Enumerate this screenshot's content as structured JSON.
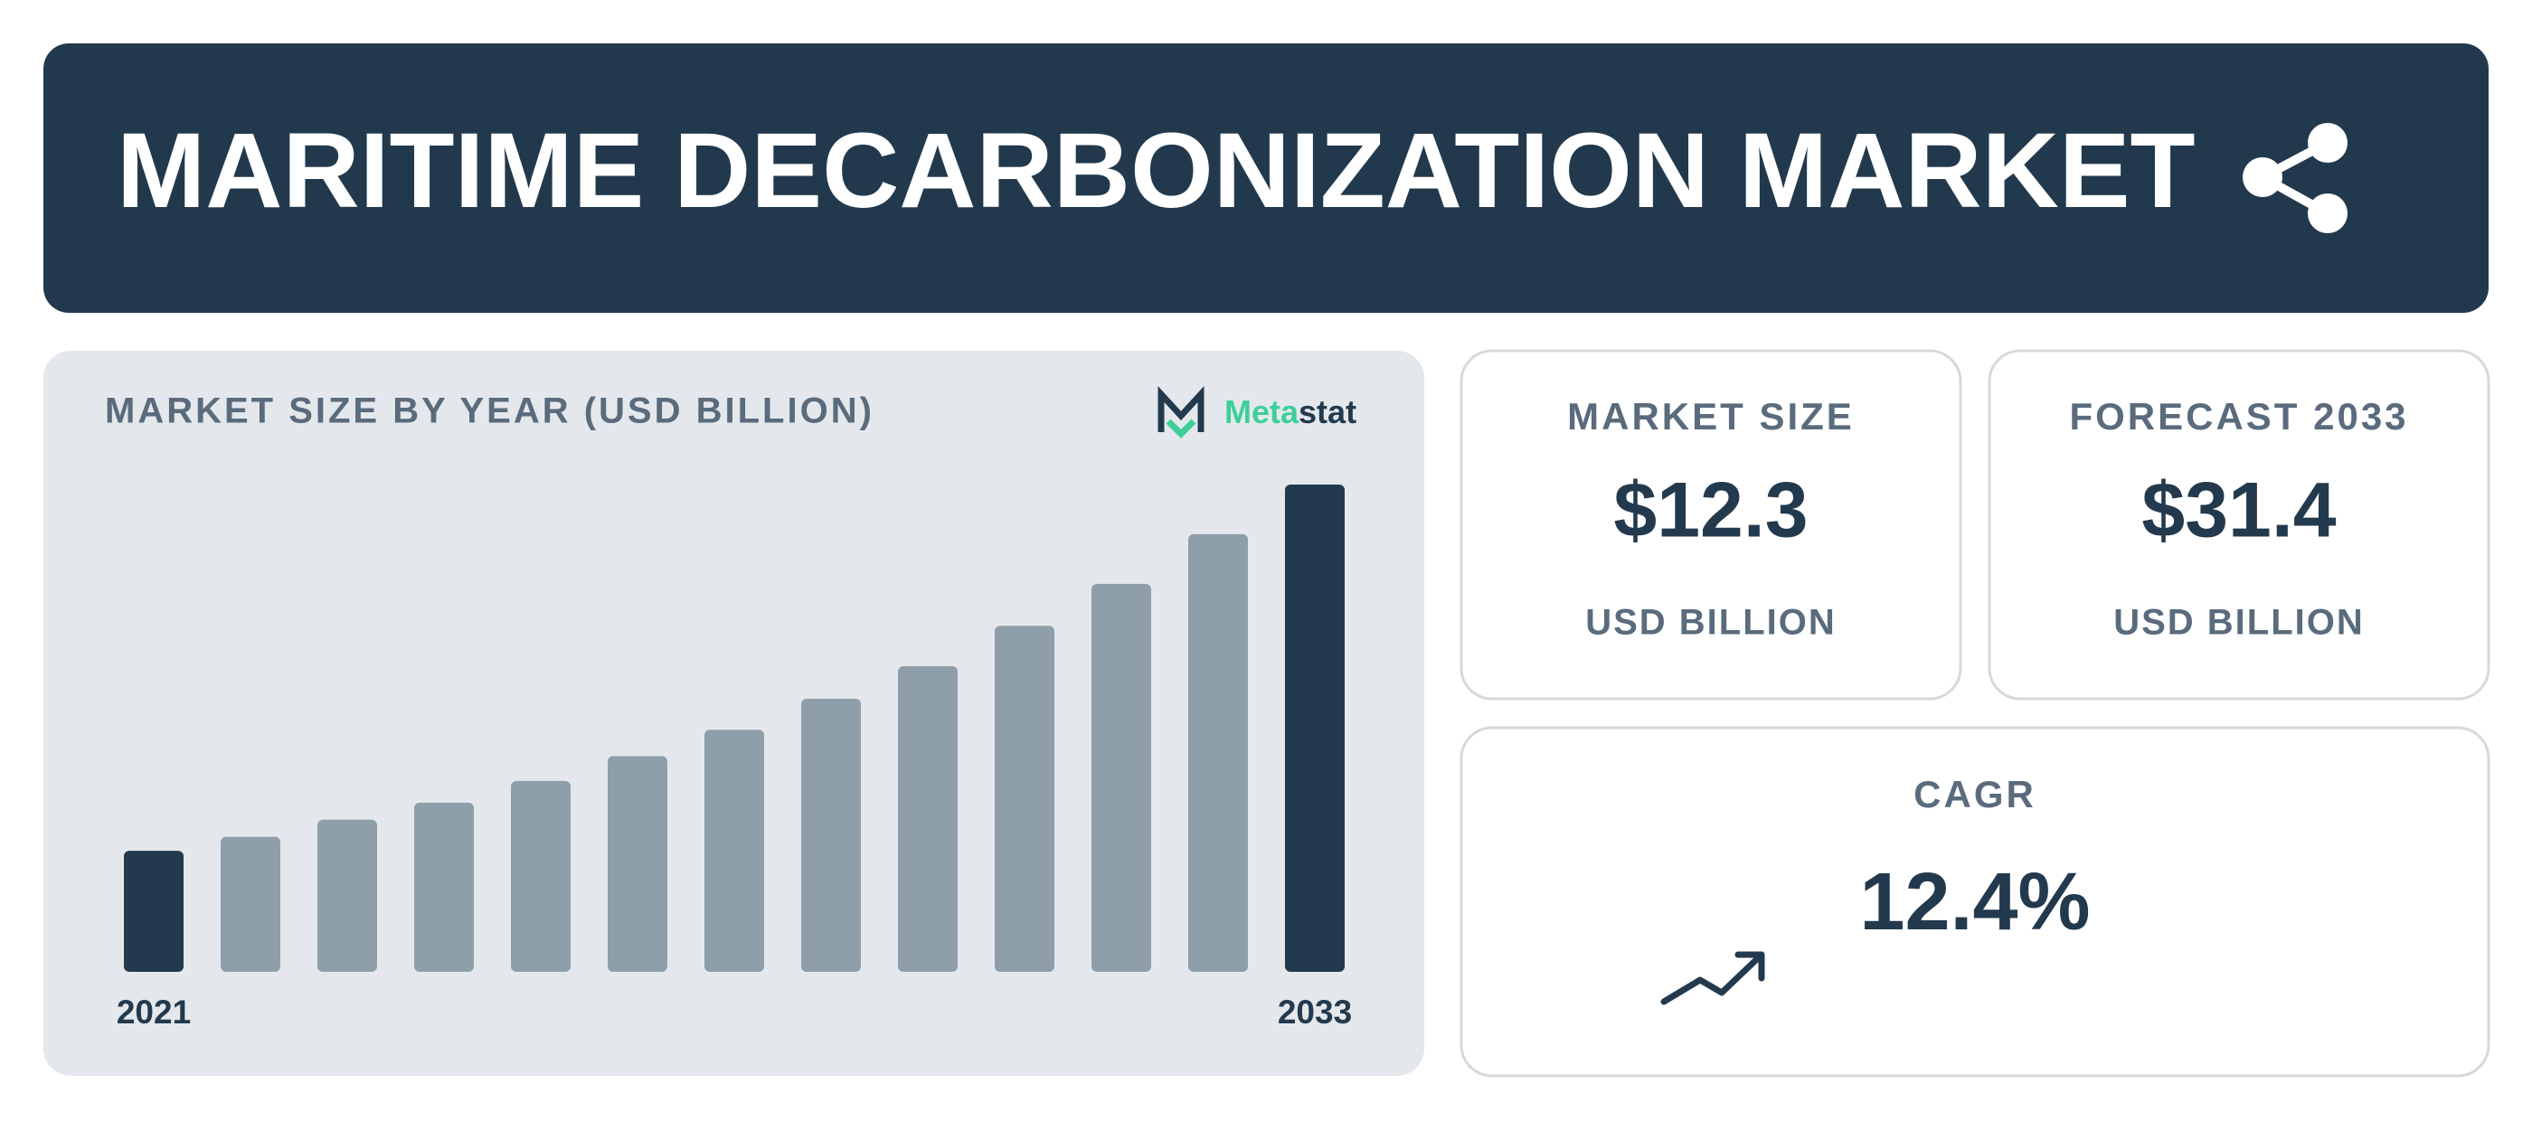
{
  "header": {
    "title": "MARITIME DECARBONIZATION MARKET"
  },
  "chart_data": {
    "type": "bar",
    "title": "MARKET SIZE BY YEAR (USD BILLION)",
    "categories": [
      "2021",
      null,
      null,
      null,
      null,
      null,
      null,
      null,
      null,
      null,
      null,
      null,
      "2033"
    ],
    "values": [
      7.8,
      8.7,
      9.8,
      10.9,
      12.3,
      13.9,
      15.6,
      17.6,
      19.7,
      22.3,
      25.0,
      28.2,
      31.4
    ],
    "colors": [
      "#233a4e",
      "#8f9faa",
      "#8f9faa",
      "#8f9faa",
      "#8f9faa",
      "#8f9faa",
      "#8f9faa",
      "#8f9faa",
      "#8f9faa",
      "#8f9faa",
      "#8f9faa",
      "#8f9faa",
      "#233a4e"
    ],
    "ylim": [
      0,
      31.4
    ],
    "grid": false
  },
  "logo": [
    "Meta",
    "stat"
  ],
  "cards": [
    {
      "label": "MARKET SIZE",
      "value": "$12.3",
      "unit": "USD BILLION"
    },
    {
      "label": "FORECAST 2033",
      "value": "$31.4",
      "unit": "USD BILLION"
    },
    {
      "label": "CAGR",
      "value": "12.4%"
    }
  ]
}
